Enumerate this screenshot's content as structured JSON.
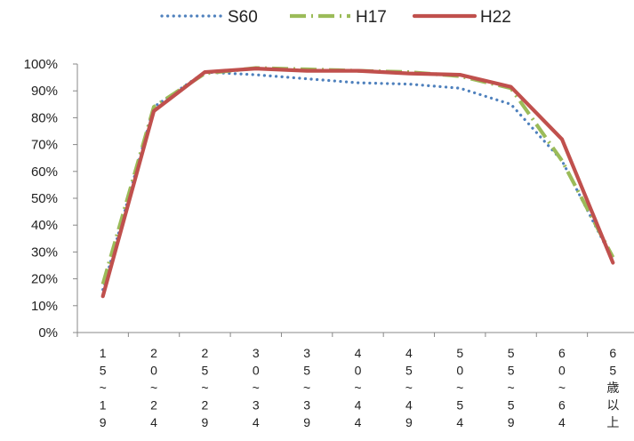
{
  "chart_data": {
    "type": "line",
    "title": "",
    "xlabel": "",
    "ylabel": "",
    "ylim": [
      0,
      100
    ],
    "y_ticks": [
      "0%",
      "10%",
      "20%",
      "30%",
      "40%",
      "50%",
      "60%",
      "70%",
      "80%",
      "90%",
      "100%"
    ],
    "y_unit": "%",
    "grid": false,
    "legend_position": "top",
    "categories": [
      "15~19",
      "20~24",
      "25~29",
      "30~34",
      "35~39",
      "40~44",
      "45~49",
      "50~54",
      "55~59",
      "60~64",
      "65歳以上"
    ],
    "series": [
      {
        "name": "S60",
        "style": "dotted",
        "color": "#4F81BD",
        "values": [
          16,
          84,
          97,
          96,
          94.5,
          93,
          92.5,
          91,
          85,
          64,
          27
        ]
      },
      {
        "name": "H17",
        "style": "dashdot",
        "color": "#9BBB59",
        "values": [
          18,
          84,
          96.5,
          98.5,
          98,
          97.5,
          97,
          95.5,
          91,
          64,
          28
        ]
      },
      {
        "name": "H22",
        "style": "solid",
        "color": "#C0504D",
        "values": [
          13.5,
          82.5,
          97,
          98.3,
          97.5,
          97.5,
          96.5,
          96,
          91.5,
          72,
          26
        ]
      }
    ]
  }
}
